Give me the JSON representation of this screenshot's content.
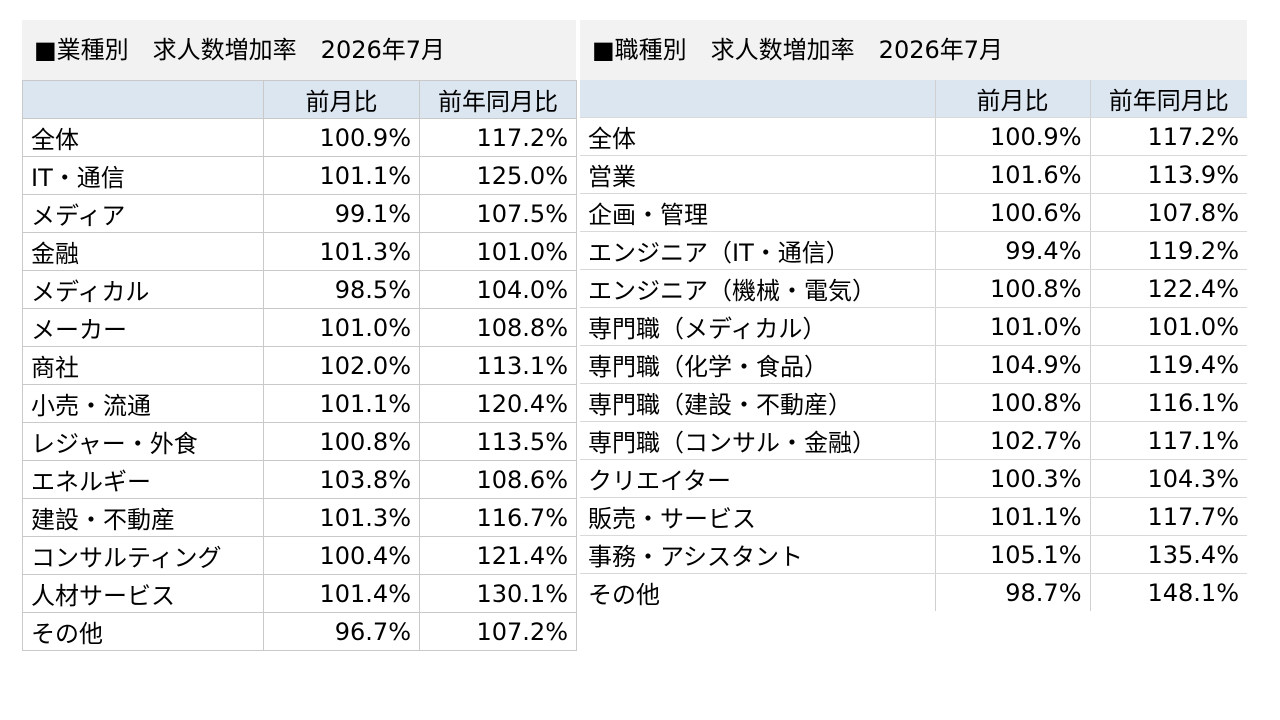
{
  "left": {
    "title": "■業種別　求人数増加率　2026年7月",
    "headers": [
      "",
      "前月比",
      "前年同月比"
    ],
    "rows": [
      [
        "全体",
        "100.9%",
        "117.2%"
      ],
      [
        "IT・通信",
        "101.1%",
        "125.0%"
      ],
      [
        "メディア",
        "99.1%",
        "107.5%"
      ],
      [
        "金融",
        "101.3%",
        "101.0%"
      ],
      [
        "メディカル",
        "98.5%",
        "104.0%"
      ],
      [
        "メーカー",
        "101.0%",
        "108.8%"
      ],
      [
        "商社",
        "102.0%",
        "113.1%"
      ],
      [
        "小売・流通",
        "101.1%",
        "120.4%"
      ],
      [
        "レジャー・外食",
        "100.8%",
        "113.5%"
      ],
      [
        "エネルギー",
        "103.8%",
        "108.6%"
      ],
      [
        "建設・不動産",
        "101.3%",
        "116.7%"
      ],
      [
        "コンサルティング",
        "100.4%",
        "121.4%"
      ],
      [
        "人材サービス",
        "101.4%",
        "130.1%"
      ],
      [
        "その他",
        "96.7%",
        "107.2%"
      ]
    ]
  },
  "right": {
    "title": "■職種別　求人数増加率　2026年7月",
    "headers": [
      "",
      "前月比",
      "前年同月比"
    ],
    "rows": [
      [
        "全体",
        "100.9%",
        "117.2%"
      ],
      [
        "営業",
        "101.6%",
        "113.9%"
      ],
      [
        "企画・管理",
        "100.6%",
        "107.8%"
      ],
      [
        "エンジニア（IT・通信）",
        "99.4%",
        "119.2%"
      ],
      [
        "エンジニア（機械・電気）",
        "100.8%",
        "122.4%"
      ],
      [
        "専門職（メディカル）",
        "101.0%",
        "101.0%"
      ],
      [
        "専門職（化学・食品）",
        "104.9%",
        "119.4%"
      ],
      [
        "専門職（建設・不動産）",
        "100.8%",
        "116.1%"
      ],
      [
        "専門職（コンサル・金融）",
        "102.7%",
        "117.1%"
      ],
      [
        "クリエイター",
        "100.3%",
        "104.3%"
      ],
      [
        "販売・サービス",
        "101.1%",
        "117.7%"
      ],
      [
        "事務・アシスタント",
        "105.1%",
        "135.4%"
      ],
      [
        "その他",
        "98.7%",
        "148.1%"
      ]
    ]
  }
}
